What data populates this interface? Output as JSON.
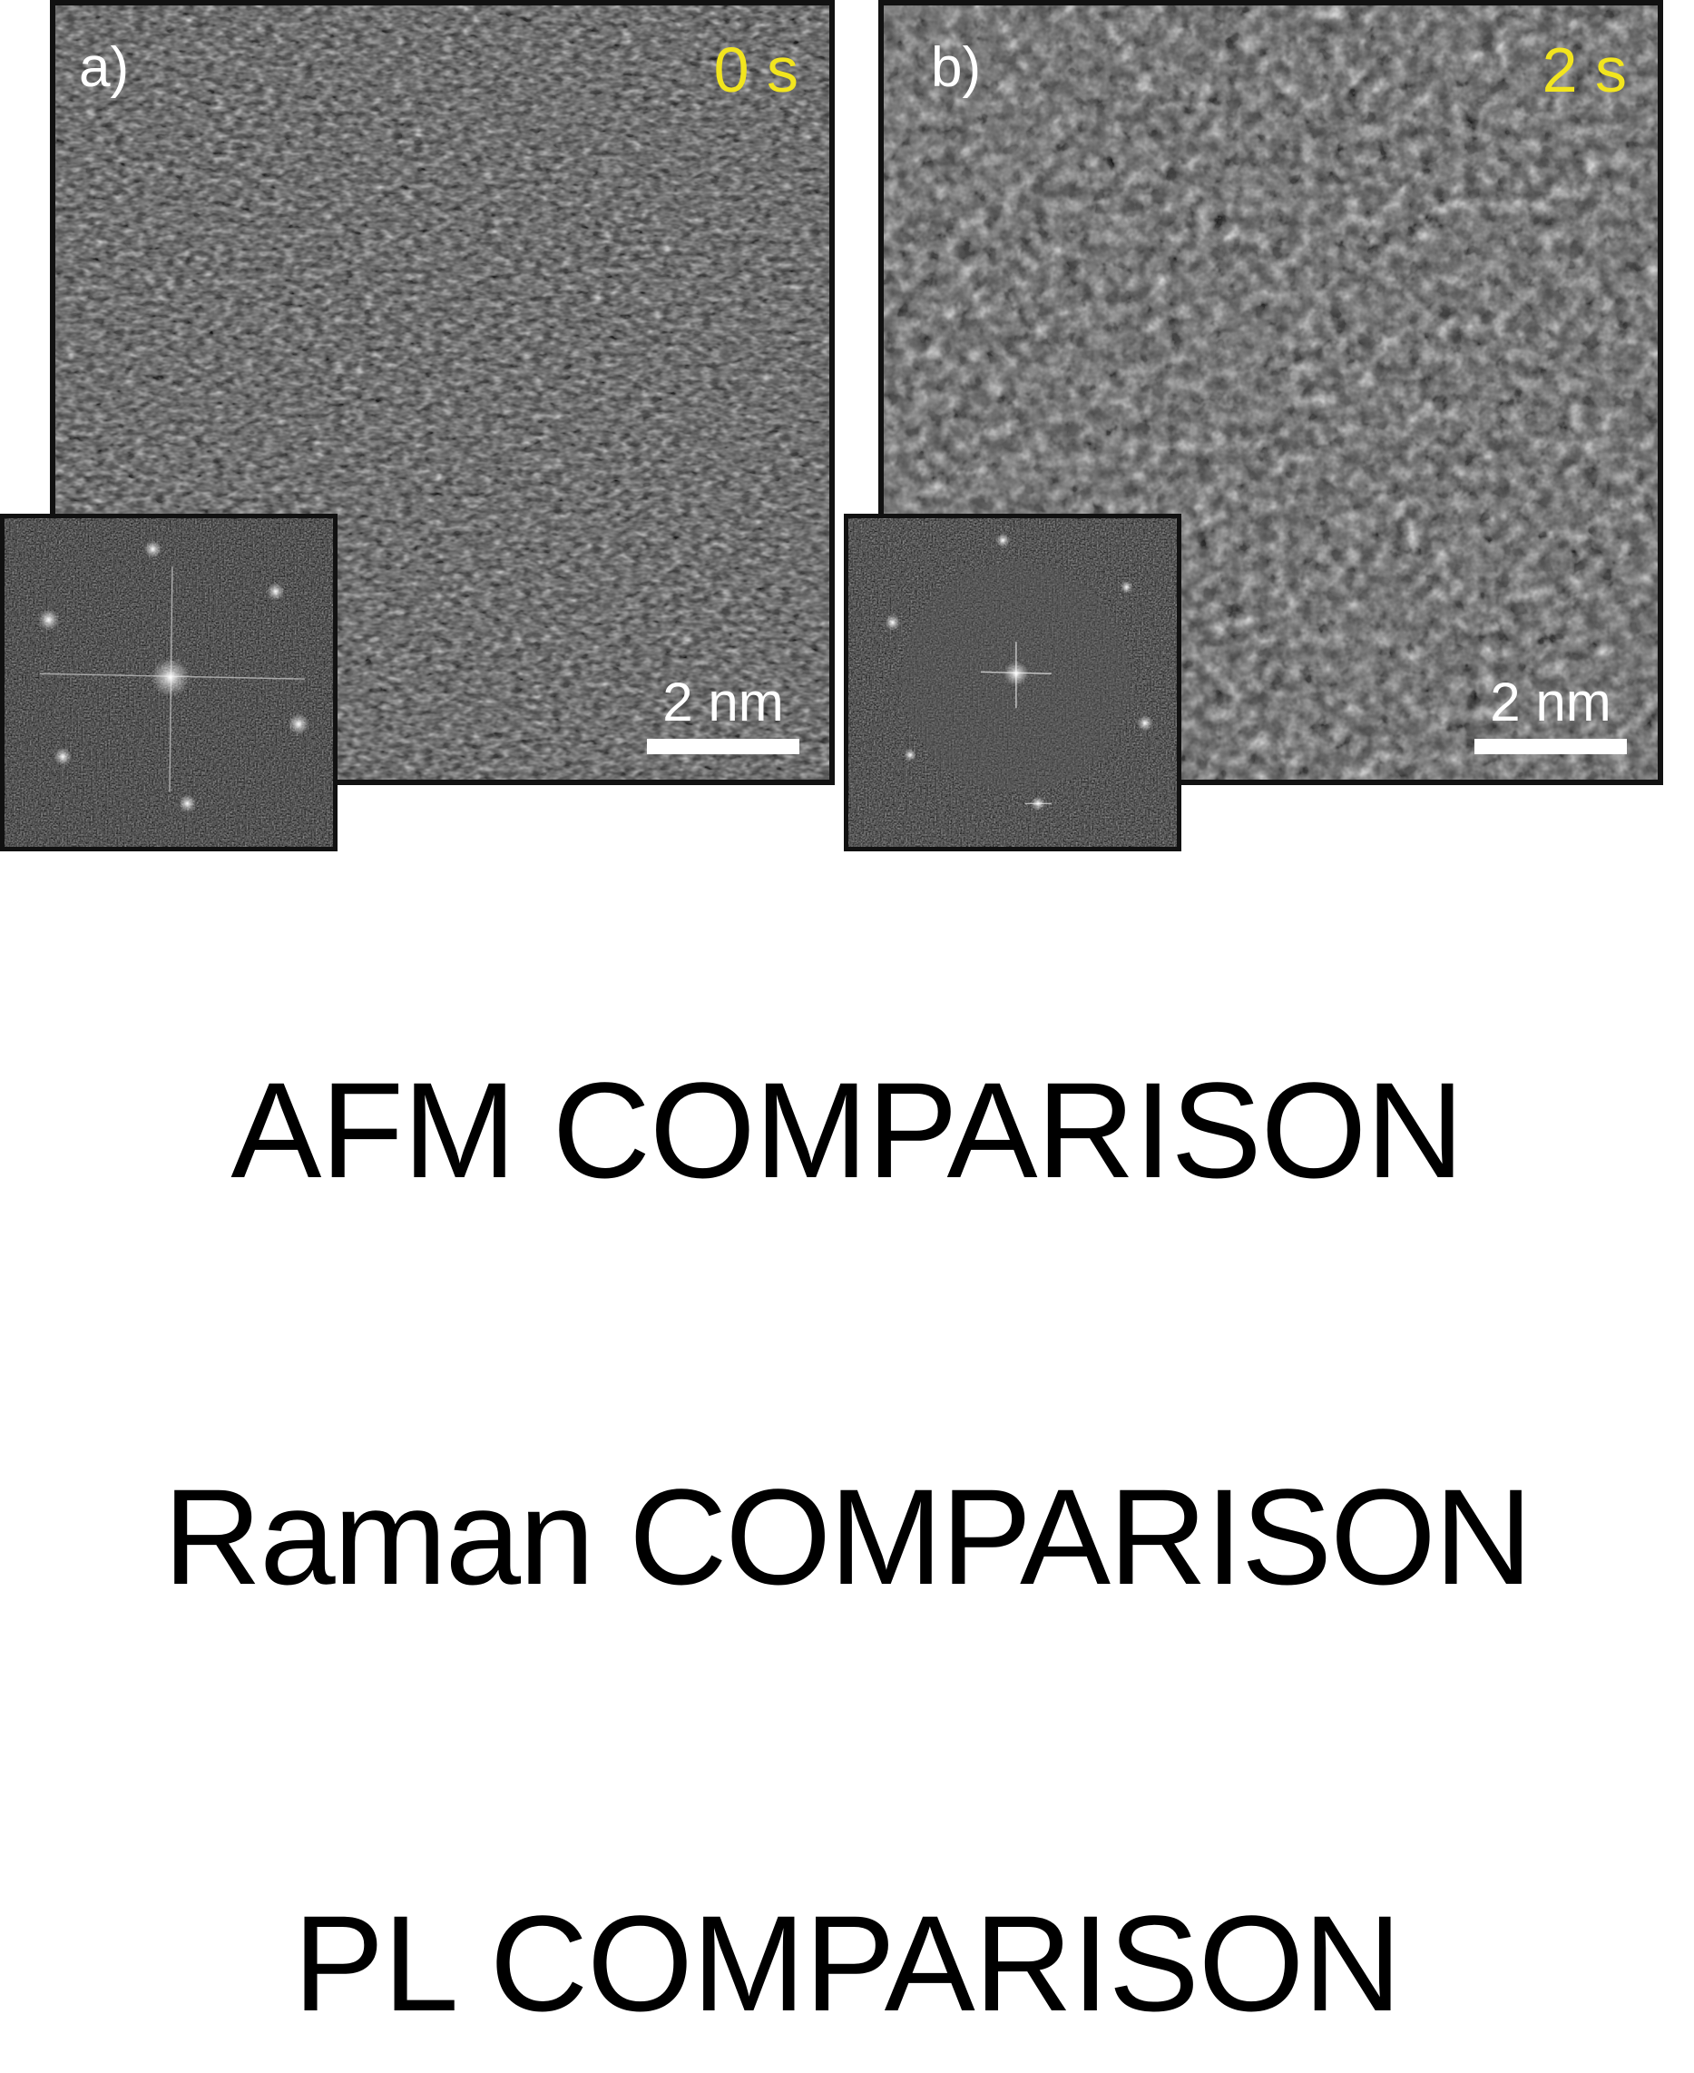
{
  "panels": [
    {
      "label": "a)",
      "time": "0 s",
      "scale": "2 nm"
    },
    {
      "label": "b)",
      "time": "2 s",
      "scale": "2 nm"
    }
  ],
  "headings": [
    "AFM COMPARISON",
    "Raman COMPARISON",
    "PL COMPARISON"
  ],
  "colors": {
    "time_label": "#f2e51e",
    "panel_label": "#ffffff",
    "border": "#111111"
  }
}
